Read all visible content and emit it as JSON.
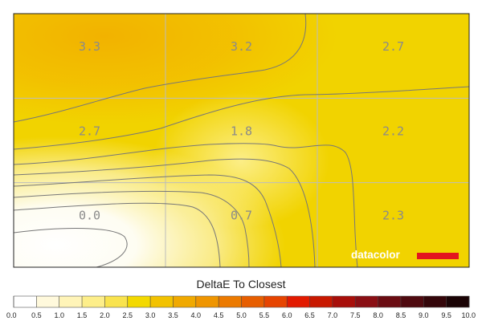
{
  "chart_data": {
    "type": "heatmap",
    "title": "",
    "grid": {
      "rows": 3,
      "cols": 3,
      "gridlines": true
    },
    "cells": [
      [
        3.3,
        3.2,
        2.7
      ],
      [
        2.7,
        1.8,
        2.2
      ],
      [
        0.0,
        0.7,
        2.3
      ]
    ],
    "cell_labels": [
      [
        "3.3",
        "3.2",
        "2.7"
      ],
      [
        "2.7",
        "1.8",
        "2.2"
      ],
      [
        "0.0",
        "0.7",
        "2.3"
      ]
    ],
    "legend": {
      "title": "DeltaE To Closest",
      "range": [
        0,
        10
      ],
      "ticks": [
        "0.0",
        "0.5",
        "1.0",
        "1.5",
        "2.0",
        "2.5",
        "3.0",
        "3.5",
        "4.0",
        "4.5",
        "5.0",
        "5.5",
        "6.0",
        "6.5",
        "7.0",
        "7.5",
        "8.0",
        "8.5",
        "9.0",
        "9.5",
        "10.0"
      ],
      "colors": [
        "#ffffff",
        "#fff9dc",
        "#fff4b8",
        "#fdee8a",
        "#f9e34e",
        "#f3d900",
        "#f2c200",
        "#f0a900",
        "#ef9500",
        "#ec7a00",
        "#e75e00",
        "#e64400",
        "#e21a00",
        "#c81800",
        "#a80f0a",
        "#8a0f14",
        "#6a0c12",
        "#4f0a10",
        "#34060a",
        "#1a0305"
      ]
    },
    "watermark": "datacolor",
    "colors": {
      "brand_bar": "#e3151e",
      "gridline": "#bcbcbc",
      "contour": "#777777"
    }
  }
}
